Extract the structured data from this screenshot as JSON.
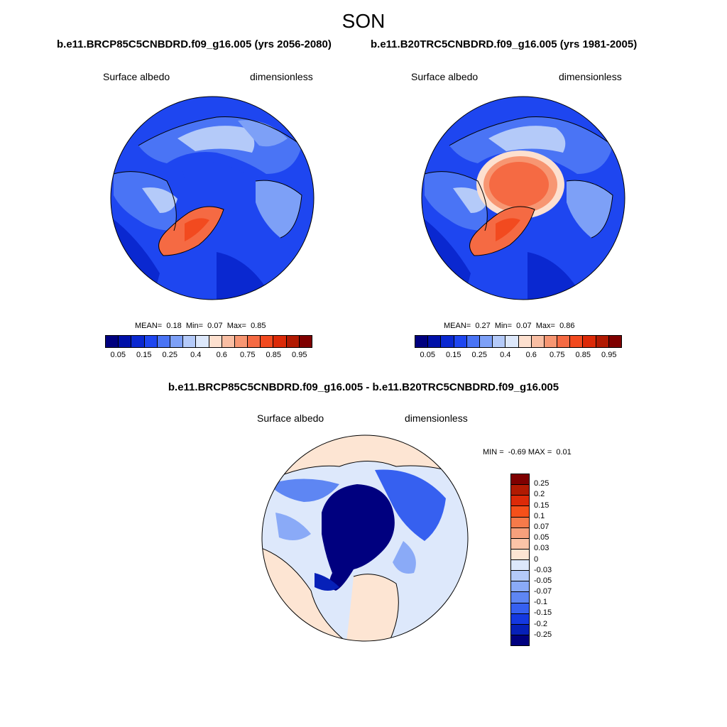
{
  "season": "SON",
  "panel_left": {
    "case": "b.e11.BRCP85C5CNBDRD.f09_g16.005 (yrs 2056-2080)",
    "variable": "Surface albedo",
    "units": "dimensionless",
    "mean_label": "MEAN=",
    "mean": "0.18",
    "min_label": "Min=",
    "min": "0.07",
    "max_label": "Max=",
    "max": "0.85"
  },
  "panel_right": {
    "case": "b.e11.B20TRC5CNBDRD.f09_g16.005 (yrs 1981-2005)",
    "variable": "Surface albedo",
    "units": "dimensionless",
    "mean_label": "MEAN=",
    "mean": "0.27",
    "min_label": "Min=",
    "min": "0.07",
    "max_label": "Max=",
    "max": "0.86"
  },
  "panel_diff": {
    "title": "b.e11.BRCP85C5CNBDRD.f09_g16.005 - b.e11.B20TRC5CNBDRD.f09_g16.005",
    "variable": "Surface albedo",
    "units": "dimensionless",
    "min_label": "MIN =",
    "min": "-0.69",
    "max_label": "MAX =",
    "max": "0.01"
  },
  "colorbar_main": {
    "colors": [
      "#00007f",
      "#0010a8",
      "#0a28d0",
      "#1e46f0",
      "#4a74f5",
      "#7da0f7",
      "#b4caf9",
      "#dde8fb",
      "#fde0cf",
      "#f9bea3",
      "#f79672",
      "#f56a43",
      "#f24a1f",
      "#dc2a08",
      "#b11a02",
      "#7f0000"
    ],
    "ticks": [
      "0.05",
      "0.15",
      "0.25",
      "0.4",
      "0.6",
      "0.75",
      "0.85",
      "0.95"
    ]
  },
  "colorbar_diff": {
    "colors": [
      "#7f0000",
      "#b11a02",
      "#dc2a08",
      "#f5501a",
      "#f67a4a",
      "#f7a07c",
      "#fbc4a8",
      "#fde5d3",
      "#dde8fb",
      "#b4caf9",
      "#8aaaf7",
      "#5e86f3",
      "#3660f0",
      "#1438e0",
      "#0620b8",
      "#00007f"
    ],
    "ticks": [
      "0.25",
      "0.2",
      "0.15",
      "0.1",
      "0.07",
      "0.05",
      "0.03",
      "0",
      "-0.03",
      "-0.05",
      "-0.07",
      "-0.1",
      "-0.15",
      "-0.2",
      "-0.25"
    ]
  },
  "map_colors": {
    "ocean_low": "#1e46f0",
    "ocean_deep": "#0a28d0",
    "snow": "#b4caf9",
    "ice_high": "#f56a43",
    "ice_peak": "#f24a1f",
    "diff_land": "#fde5d3",
    "diff_neutral": "#dde8fb",
    "diff_loss": "#00007f"
  }
}
